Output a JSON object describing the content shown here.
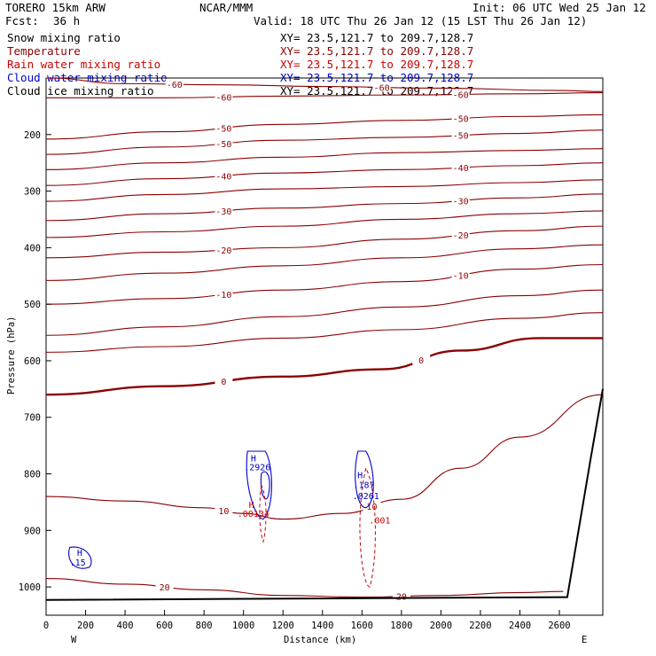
{
  "header": {
    "model": "TORERO  15km ARW",
    "center": "NCAR/MMM",
    "init": "Init: 06 UTC Wed 25 Jan 12",
    "fcst_label": "Fcst:",
    "fcst_value": "36 h",
    "valid": "Valid: 18 UTC Thu 26 Jan 12 (15 LST Thu 26 Jan 12)"
  },
  "fields": [
    {
      "name": "Snow mixing ratio",
      "xy": "",
      "color": "#000000"
    },
    {
      "name": "Temperature",
      "xy": "XY=  23.5,121.7 to 209.7,128.7",
      "color": "#8b0000"
    },
    {
      "name": "Rain water mixing ratio",
      "xy": "XY=  23.5,121.7 to 209.7,128.7",
      "color": "#cc0000"
    },
    {
      "name": "Cloud water mixing ratio",
      "xy": "XY=  23.5,121.7 to 209.7,128.7",
      "color": "#0000cc"
    },
    {
      "name": "Cloud ice mixing ratio",
      "xy": "XY=  23.5,121.7 to 209.7,128.7",
      "color": "#000000"
    }
  ],
  "snow_xy": "XY=  23.5,121.7 to 209.7,128.7",
  "chart_data": {
    "type": "contour",
    "xlabel": "Distance (km)",
    "ylabel": "Pressure (hPa)",
    "xlim": [
      0,
      2820
    ],
    "ylim": [
      1050,
      100
    ],
    "x_ticks": [
      "0",
      "200",
      "400",
      "600",
      "800",
      "1000",
      "1200",
      "1400",
      "1600",
      "1800",
      "2000",
      "2200",
      "2400",
      "2600"
    ],
    "y_ticks": [
      "200",
      "300",
      "400",
      "500",
      "600",
      "700",
      "800",
      "900",
      "1000"
    ],
    "x_end_labels": {
      "left": "W",
      "right": "E"
    },
    "temperature_contours": [
      {
        "level": -60,
        "label": "-60",
        "color": "#8b0000",
        "points": [
          [
            0,
            100
          ],
          [
            400,
            110
          ],
          [
            900,
            112
          ],
          [
            1400,
            115
          ],
          [
            2000,
            118
          ],
          [
            2600,
            122
          ],
          [
            2820,
            124
          ]
        ]
      },
      {
        "level": -60,
        "label": "-60",
        "color": "#8b0000",
        "points": [
          [
            0,
            135
          ],
          [
            600,
            135
          ],
          [
            1200,
            132
          ],
          [
            1800,
            130
          ],
          [
            2400,
            128
          ],
          [
            2820,
            126
          ]
        ]
      },
      {
        "level": -50,
        "label": "-50",
        "color": "#8b0000",
        "points": [
          [
            0,
            208
          ],
          [
            600,
            195
          ],
          [
            1200,
            182
          ],
          [
            1800,
            175
          ],
          [
            2400,
            168
          ],
          [
            2820,
            165
          ]
        ]
      },
      {
        "level": -50,
        "label": "-50",
        "color": "#8b0000",
        "points": [
          [
            0,
            235
          ],
          [
            600,
            222
          ],
          [
            1200,
            210
          ],
          [
            1800,
            205
          ],
          [
            2400,
            198
          ],
          [
            2820,
            192
          ]
        ]
      },
      {
        "level": -45,
        "label": "",
        "color": "#8b0000",
        "points": [
          [
            0,
            262
          ],
          [
            600,
            250
          ],
          [
            1200,
            240
          ],
          [
            1800,
            232
          ],
          [
            2400,
            228
          ],
          [
            2820,
            225
          ]
        ]
      },
      {
        "level": -40,
        "label": "-40",
        "color": "#8b0000",
        "points": [
          [
            0,
            290
          ],
          [
            600,
            278
          ],
          [
            1200,
            268
          ],
          [
            1800,
            262
          ],
          [
            2400,
            255
          ],
          [
            2820,
            250
          ]
        ]
      },
      {
        "level": -35,
        "label": "",
        "color": "#8b0000",
        "points": [
          [
            0,
            318
          ],
          [
            600,
            306
          ],
          [
            1200,
            296
          ],
          [
            1800,
            292
          ],
          [
            2400,
            285
          ],
          [
            2820,
            280
          ]
        ]
      },
      {
        "level": -30,
        "label": "-30",
        "color": "#8b0000",
        "points": [
          [
            0,
            352
          ],
          [
            600,
            340
          ],
          [
            1200,
            330
          ],
          [
            1800,
            322
          ],
          [
            2400,
            312
          ],
          [
            2820,
            305
          ]
        ]
      },
      {
        "level": -25,
        "label": "",
        "color": "#8b0000",
        "points": [
          [
            0,
            382
          ],
          [
            600,
            372
          ],
          [
            1200,
            362
          ],
          [
            1800,
            350
          ],
          [
            2400,
            340
          ],
          [
            2820,
            335
          ]
        ]
      },
      {
        "level": -20,
        "label": "-20",
        "color": "#8b0000",
        "points": [
          [
            0,
            418
          ],
          [
            600,
            408
          ],
          [
            1200,
            400
          ],
          [
            1800,
            385
          ],
          [
            2400,
            370
          ],
          [
            2820,
            362
          ]
        ]
      },
      {
        "level": -15,
        "label": "",
        "color": "#8b0000",
        "points": [
          [
            0,
            458
          ],
          [
            600,
            445
          ],
          [
            1200,
            432
          ],
          [
            1800,
            418
          ],
          [
            2400,
            402
          ],
          [
            2820,
            395
          ]
        ]
      },
      {
        "level": -10,
        "label": "-10",
        "color": "#8b0000",
        "points": [
          [
            0,
            500
          ],
          [
            600,
            490
          ],
          [
            1200,
            475
          ],
          [
            1800,
            460
          ],
          [
            2400,
            438
          ],
          [
            2820,
            430
          ]
        ]
      },
      {
        "level": -5,
        "label": "",
        "color": "#8b0000",
        "points": [
          [
            0,
            555
          ],
          [
            600,
            540
          ],
          [
            1200,
            522
          ],
          [
            1800,
            505
          ],
          [
            2400,
            485
          ],
          [
            2820,
            475
          ]
        ]
      },
      {
        "level": 0,
        "label": "0",
        "color": "#8b0000",
        "bold": true,
        "points": [
          [
            0,
            660
          ],
          [
            600,
            645
          ],
          [
            1200,
            628
          ],
          [
            1700,
            615
          ],
          [
            2100,
            582
          ],
          [
            2500,
            560
          ],
          [
            2820,
            560
          ]
        ]
      },
      {
        "level": 0,
        "label": "",
        "color": "#8b0000",
        "points": [
          [
            0,
            585
          ],
          [
            600,
            575
          ],
          [
            1200,
            560
          ],
          [
            1800,
            545
          ],
          [
            2400,
            525
          ],
          [
            2820,
            515
          ]
        ]
      },
      {
        "level": 10,
        "label": "10",
        "color": "#8b0000",
        "points": [
          [
            0,
            840
          ],
          [
            400,
            848
          ],
          [
            800,
            860
          ],
          [
            1000,
            870
          ],
          [
            1200,
            880
          ],
          [
            1500,
            870
          ],
          [
            1800,
            845
          ],
          [
            2100,
            790
          ],
          [
            2400,
            735
          ],
          [
            2820,
            660
          ]
        ]
      },
      {
        "level": 20,
        "label": "20",
        "color": "#8b0000",
        "points": [
          [
            0,
            985
          ],
          [
            400,
            995
          ],
          [
            800,
            1005
          ],
          [
            1200,
            1015
          ],
          [
            1600,
            1018
          ],
          [
            2000,
            1015
          ],
          [
            2400,
            1010
          ],
          [
            2620,
            1008
          ]
        ]
      }
    ],
    "rain_water": {
      "max_label": "H",
      "max_value": ".00134",
      "contour_value": ".001",
      "color": "#cc0000"
    },
    "cloud_water": {
      "centers": [
        {
          "label": "H",
          "value": ".2926"
        },
        {
          "label": "H",
          "value": ".187"
        },
        {
          "label": "H",
          "value": ".15"
        }
      ],
      "secondary_value": ".0261",
      "color": "#0000cc"
    },
    "terrain": {
      "color": "#000000"
    }
  }
}
